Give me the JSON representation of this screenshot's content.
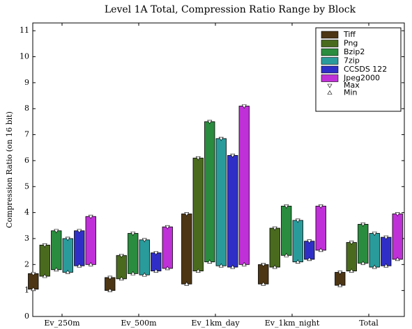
{
  "chart_data": {
    "type": "range_bar",
    "title": "Level 1A Total, Compression Ratio Range by Block",
    "y_label": "Compression Ratio (on 16 bit)",
    "categories": [
      "Ev_250m",
      "Ev_500m",
      "Ev_1km_day",
      "Ev_1km_night",
      "Total"
    ],
    "series": [
      {
        "name": "Tiff",
        "color": "#4d3614",
        "min": [
          1.05,
          1.0,
          1.25,
          1.25,
          1.2
        ],
        "max": [
          1.65,
          1.5,
          3.95,
          2.0,
          1.7
        ]
      },
      {
        "name": "Png",
        "color": "#4a6b1e",
        "min": [
          1.55,
          1.45,
          1.75,
          1.9,
          1.75
        ],
        "max": [
          2.75,
          2.35,
          6.1,
          3.4,
          2.85
        ]
      },
      {
        "name": "Bzip2",
        "color": "#2a8c3e",
        "min": [
          1.8,
          1.65,
          2.1,
          2.35,
          2.05
        ],
        "max": [
          3.3,
          3.2,
          7.5,
          4.25,
          3.55
        ]
      },
      {
        "name": "7zip",
        "color": "#2a9b9b",
        "min": [
          1.7,
          1.6,
          1.95,
          2.1,
          1.9
        ],
        "max": [
          3.0,
          2.95,
          6.85,
          3.7,
          3.2
        ]
      },
      {
        "name": "CCSDS 122",
        "color": "#2f2fc8",
        "min": [
          1.95,
          1.75,
          1.9,
          2.2,
          1.95
        ],
        "max": [
          3.3,
          2.45,
          6.2,
          2.9,
          3.05
        ]
      },
      {
        "name": "Jpeg2000",
        "color": "#c030d8",
        "min": [
          2.0,
          1.85,
          2.0,
          2.55,
          2.2
        ],
        "max": [
          3.85,
          3.45,
          8.1,
          4.25,
          3.95
        ]
      }
    ],
    "max_label": "Max",
    "min_label": "Min",
    "ylim": [
      0,
      11.3
    ],
    "yticks": [
      0,
      1,
      2,
      3,
      4,
      5,
      6,
      7,
      8,
      9,
      10,
      11
    ],
    "legend": "upper right"
  }
}
